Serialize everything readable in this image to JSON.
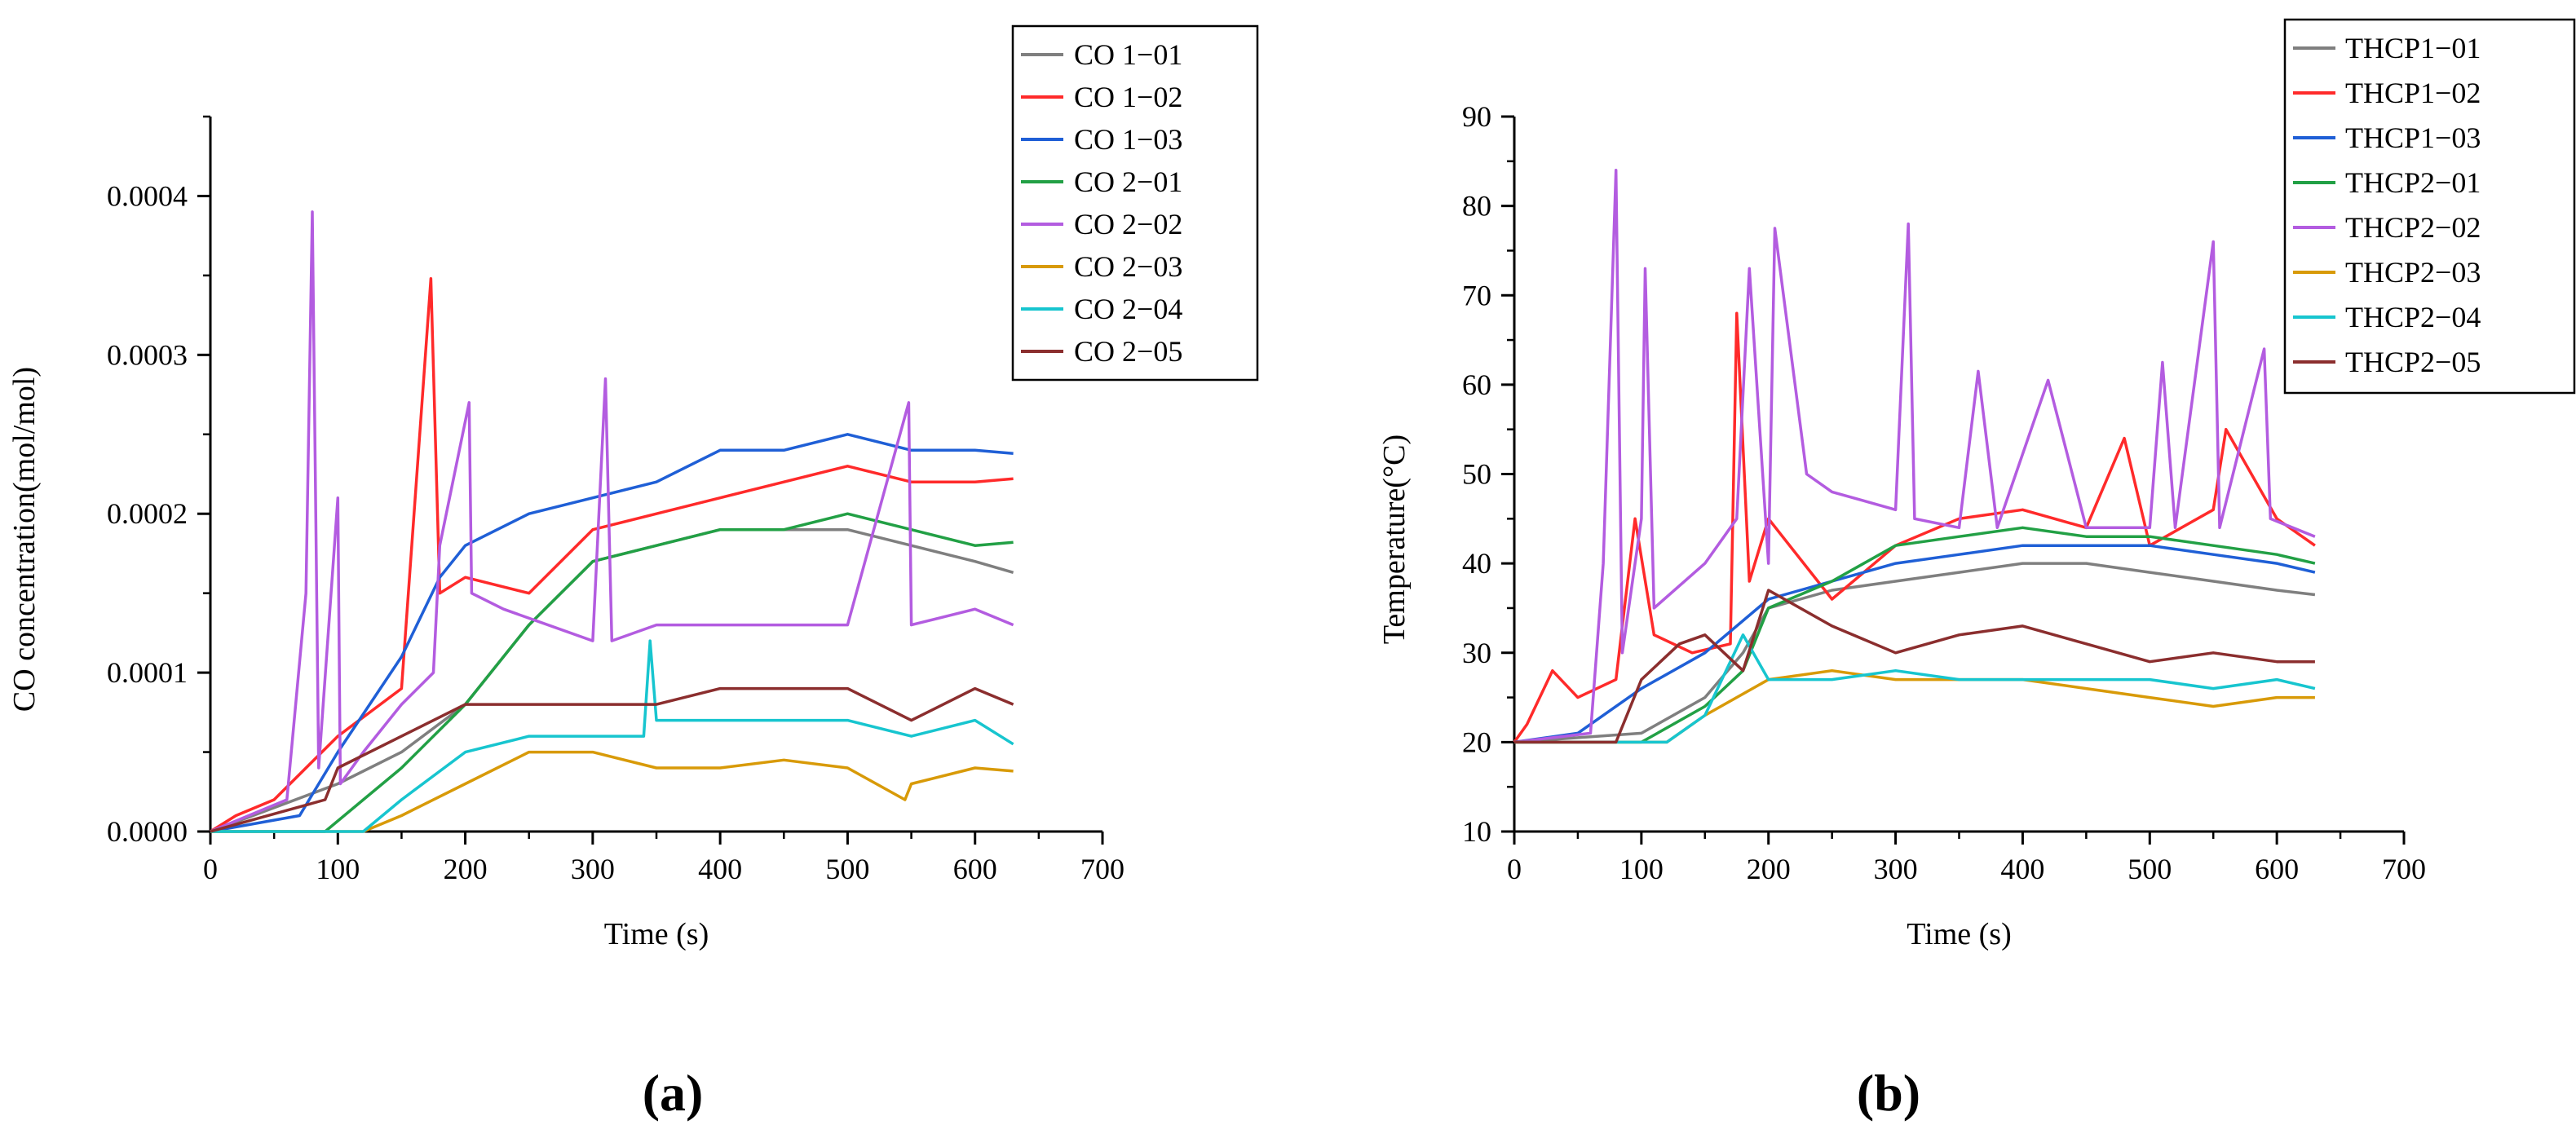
{
  "chart_data": [
    {
      "type": "line",
      "panel_label": "(a)",
      "title": "",
      "xlabel": "Time (s)",
      "ylabel": "CO concentration(mol/mol)",
      "xlim": [
        0,
        700
      ],
      "ylim": [
        0,
        0.00045
      ],
      "xticks": [
        0,
        100,
        200,
        300,
        400,
        500,
        600,
        700
      ],
      "xtick_labels": [
        "0",
        "100",
        "200",
        "300",
        "400",
        "500",
        "600",
        "700"
      ],
      "yticks": [
        0,
        0.0001,
        0.0002,
        0.0003,
        0.0004
      ],
      "ytick_labels": [
        "0.0000",
        "0.0001",
        "0.0002",
        "0.0003",
        "0.0004"
      ],
      "grid": false,
      "legend_position": "top-right",
      "series": [
        {
          "name": "CO 1−01",
          "color": "#7f7f7f",
          "x": [
            0,
            100,
            150,
            200,
            250,
            300,
            350,
            400,
            450,
            500,
            550,
            600,
            630
          ],
          "y": [
            0,
            3e-05,
            5e-05,
            8e-05,
            0.00013,
            0.00017,
            0.00018,
            0.00019,
            0.00019,
            0.00019,
            0.00018,
            0.00017,
            0.000163
          ]
        },
        {
          "name": "CO 1−02",
          "color": "#ff2a2a",
          "x": [
            0,
            20,
            50,
            100,
            150,
            173,
            180,
            200,
            250,
            300,
            350,
            400,
            450,
            500,
            550,
            600,
            630
          ],
          "y": [
            0,
            1e-05,
            2e-05,
            6e-05,
            9e-05,
            0.000348,
            0.00015,
            0.00016,
            0.00015,
            0.00019,
            0.0002,
            0.00021,
            0.00022,
            0.00023,
            0.00022,
            0.00022,
            0.000222
          ]
        },
        {
          "name": "CO 1−03",
          "color": "#1f5fd6",
          "x": [
            0,
            70,
            100,
            150,
            180,
            200,
            250,
            300,
            350,
            400,
            450,
            500,
            550,
            600,
            630
          ],
          "y": [
            0,
            1e-05,
            5e-05,
            0.00011,
            0.00016,
            0.00018,
            0.0002,
            0.00021,
            0.00022,
            0.00024,
            0.00024,
            0.00025,
            0.00024,
            0.00024,
            0.000238
          ]
        },
        {
          "name": "CO 2−01",
          "color": "#22a045",
          "x": [
            0,
            90,
            120,
            150,
            200,
            250,
            300,
            350,
            400,
            450,
            500,
            550,
            600,
            630
          ],
          "y": [
            0,
            0,
            2e-05,
            4e-05,
            8e-05,
            0.00013,
            0.00017,
            0.00018,
            0.00019,
            0.00019,
            0.0002,
            0.00019,
            0.00018,
            0.000182
          ]
        },
        {
          "name": "CO 2−02",
          "color": "#b35ce0",
          "x": [
            0,
            60,
            75,
            80,
            85,
            100,
            102,
            120,
            150,
            175,
            180,
            203,
            205,
            230,
            300,
            310,
            315,
            350,
            400,
            450,
            500,
            548,
            550,
            600,
            630
          ],
          "y": [
            0,
            2e-05,
            0.00015,
            0.00039,
            4e-05,
            0.00021,
            3e-05,
            5e-05,
            8e-05,
            0.0001,
            0.00018,
            0.00027,
            0.00015,
            0.00014,
            0.00012,
            0.000285,
            0.00012,
            0.00013,
            0.00013,
            0.00013,
            0.00013,
            0.00027,
            0.00013,
            0.00014,
            0.00013
          ]
        },
        {
          "name": "CO 2−03",
          "color": "#d89a08",
          "x": [
            0,
            120,
            150,
            200,
            250,
            300,
            350,
            400,
            450,
            500,
            545,
            550,
            600,
            630
          ],
          "y": [
            0,
            0,
            1e-05,
            3e-05,
            5e-05,
            5e-05,
            4e-05,
            4e-05,
            4.5e-05,
            4e-05,
            2e-05,
            3e-05,
            4e-05,
            3.8e-05
          ]
        },
        {
          "name": "CO 2−04",
          "color": "#17c5cf",
          "x": [
            0,
            120,
            150,
            200,
            250,
            300,
            340,
            345,
            350,
            400,
            450,
            500,
            550,
            600,
            630
          ],
          "y": [
            0,
            0,
            2e-05,
            5e-05,
            6e-05,
            6e-05,
            6e-05,
            0.00012,
            7e-05,
            7e-05,
            7e-05,
            7e-05,
            6e-05,
            7e-05,
            5.5e-05
          ]
        },
        {
          "name": "CO 2−05",
          "color": "#8b2e2e",
          "x": [
            0,
            90,
            100,
            150,
            200,
            250,
            300,
            350,
            400,
            450,
            500,
            550,
            600,
            630
          ],
          "y": [
            0,
            2e-05,
            4e-05,
            6e-05,
            8e-05,
            8e-05,
            8e-05,
            8e-05,
            9e-05,
            9e-05,
            9e-05,
            7e-05,
            9e-05,
            8e-05
          ]
        }
      ]
    },
    {
      "type": "line",
      "panel_label": "(b)",
      "title": "",
      "xlabel": "Time (s)",
      "ylabel": "Temperature(°C)",
      "xlim": [
        0,
        700
      ],
      "ylim": [
        10,
        90
      ],
      "xticks": [
        0,
        100,
        200,
        300,
        400,
        500,
        600,
        700
      ],
      "xtick_labels": [
        "0",
        "100",
        "200",
        "300",
        "400",
        "500",
        "600",
        "700"
      ],
      "yticks": [
        10,
        20,
        30,
        40,
        50,
        60,
        70,
        80,
        90
      ],
      "ytick_labels": [
        "10",
        "20",
        "30",
        "40",
        "50",
        "60",
        "70",
        "80",
        "90"
      ],
      "grid": false,
      "legend_position": "top-right",
      "series": [
        {
          "name": "THCP1−01",
          "color": "#7f7f7f",
          "x": [
            0,
            100,
            150,
            180,
            200,
            250,
            300,
            350,
            400,
            450,
            500,
            550,
            600,
            630
          ],
          "y": [
            20,
            21,
            25,
            30,
            35,
            37,
            38,
            39,
            40,
            40,
            39,
            38,
            37,
            36.5
          ]
        },
        {
          "name": "THCP1−02",
          "color": "#ff2a2a",
          "x": [
            0,
            10,
            30,
            50,
            80,
            95,
            110,
            140,
            170,
            175,
            185,
            200,
            250,
            300,
            350,
            400,
            450,
            480,
            500,
            550,
            560,
            600,
            630
          ],
          "y": [
            20,
            22,
            28,
            25,
            27,
            45,
            32,
            30,
            31,
            68,
            38,
            45,
            36,
            42,
            45,
            46,
            44,
            54,
            42,
            46,
            55,
            45,
            42
          ]
        },
        {
          "name": "THCP1−03",
          "color": "#1f5fd6",
          "x": [
            0,
            50,
            100,
            150,
            200,
            250,
            300,
            350,
            400,
            450,
            500,
            550,
            600,
            630
          ],
          "y": [
            20,
            21,
            26,
            30,
            36,
            38,
            40,
            41,
            42,
            42,
            42,
            41,
            40,
            39
          ]
        },
        {
          "name": "THCP2−01",
          "color": "#22a045",
          "x": [
            0,
            100,
            150,
            180,
            200,
            250,
            300,
            350,
            400,
            450,
            500,
            550,
            600,
            630
          ],
          "y": [
            20,
            20,
            24,
            28,
            35,
            38,
            42,
            43,
            44,
            43,
            43,
            42,
            41,
            40
          ]
        },
        {
          "name": "THCP2−02",
          "color": "#b35ce0",
          "x": [
            0,
            60,
            70,
            80,
            85,
            100,
            103,
            110,
            150,
            175,
            185,
            200,
            205,
            230,
            250,
            300,
            310,
            315,
            350,
            365,
            380,
            420,
            450,
            500,
            510,
            520,
            550,
            555,
            590,
            595,
            630
          ],
          "y": [
            20,
            21,
            40,
            84,
            30,
            45,
            73,
            35,
            40,
            45,
            73,
            40,
            77.5,
            50,
            48,
            46,
            78,
            45,
            44,
            61.5,
            44,
            60.5,
            44,
            44,
            62.5,
            44,
            76,
            44,
            64,
            45,
            43
          ]
        },
        {
          "name": "THCP2−03",
          "color": "#d89a08",
          "x": [
            0,
            120,
            150,
            200,
            250,
            300,
            350,
            400,
            450,
            500,
            550,
            600,
            630
          ],
          "y": [
            20,
            20,
            23,
            27,
            28,
            27,
            27,
            27,
            26,
            25,
            24,
            25,
            25
          ]
        },
        {
          "name": "THCP2−04",
          "color": "#17c5cf",
          "x": [
            0,
            120,
            150,
            180,
            200,
            250,
            300,
            350,
            400,
            450,
            500,
            550,
            600,
            630
          ],
          "y": [
            20,
            20,
            23,
            32,
            27,
            27,
            28,
            27,
            27,
            27,
            27,
            26,
            27,
            26
          ]
        },
        {
          "name": "THCP2−05",
          "color": "#8b2e2e",
          "x": [
            0,
            80,
            100,
            130,
            150,
            180,
            200,
            250,
            300,
            350,
            400,
            450,
            500,
            550,
            600,
            630
          ],
          "y": [
            20,
            20,
            27,
            31,
            32,
            28,
            37,
            33,
            30,
            32,
            33,
            31,
            29,
            30,
            29,
            29
          ]
        }
      ]
    }
  ]
}
